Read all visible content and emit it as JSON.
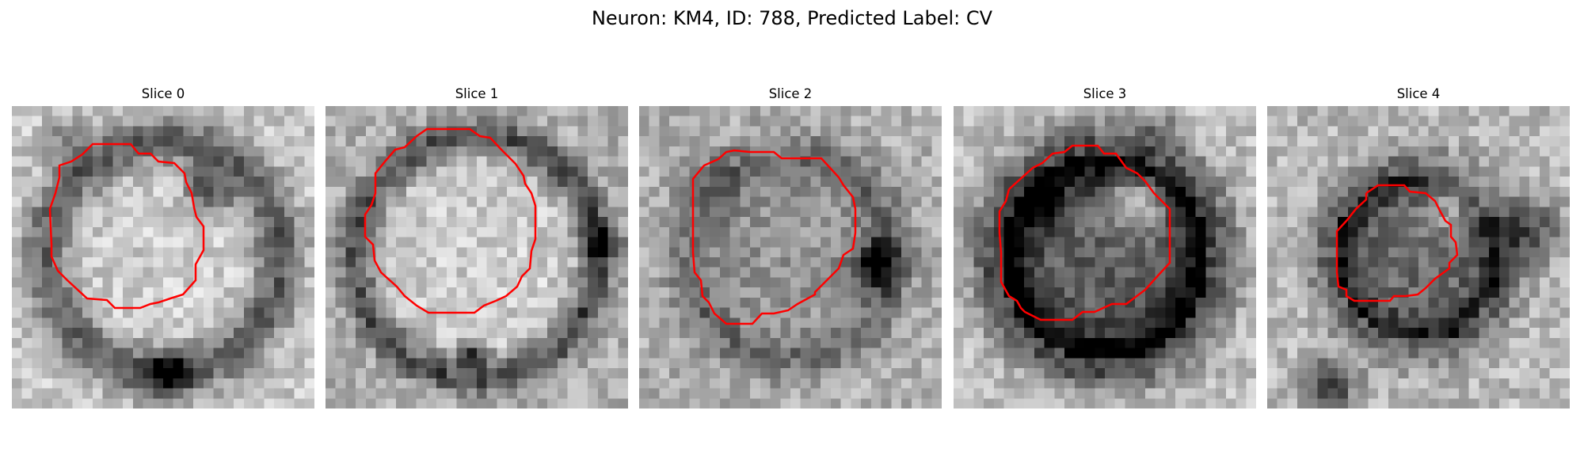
{
  "figure": {
    "title": "Neuron: KM4, ID: 788, Predicted Label: CV"
  },
  "colors": {
    "contour": "#ff0000",
    "colormap": "gray"
  },
  "panels": [
    {
      "title": "Slice 0"
    },
    {
      "title": "Slice 1"
    },
    {
      "title": "Slice 2"
    },
    {
      "title": "Slice 3"
    },
    {
      "title": "Slice 4"
    }
  ]
}
